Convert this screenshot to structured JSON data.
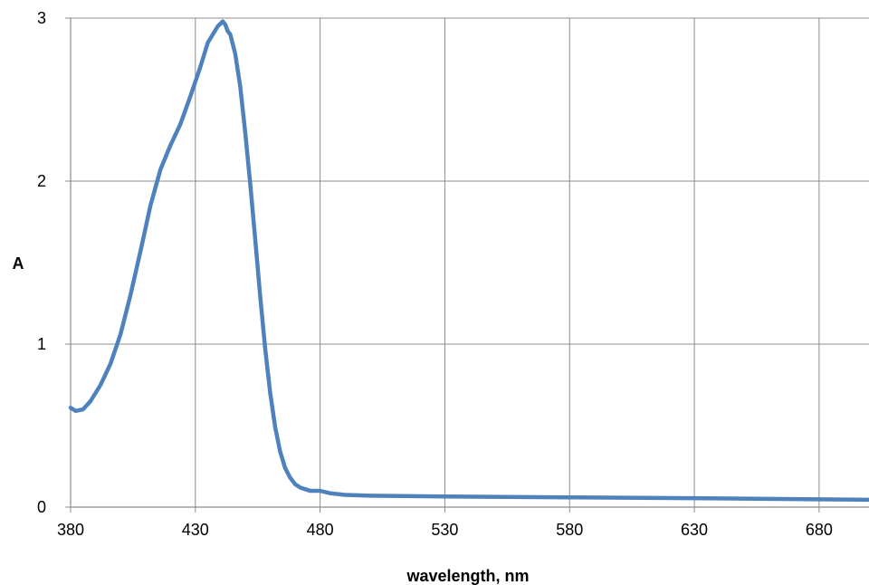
{
  "chart_data": {
    "type": "line",
    "title": "",
    "xlabel": "wavelength, nm",
    "ylabel": "A",
    "xlim": [
      380,
      700
    ],
    "ylim": [
      0,
      3
    ],
    "x_ticks": [
      380,
      430,
      480,
      530,
      580,
      630,
      680
    ],
    "y_ticks": [
      0,
      1,
      2,
      3
    ],
    "grid": true,
    "legend": "none",
    "colors": {
      "line": "#4f81bd",
      "grid": "#8c8c8c",
      "axis": "#8c8c8c"
    },
    "series": [
      {
        "x": [
          380,
          382,
          385,
          388,
          392,
          396,
          400,
          404,
          408,
          412,
          416,
          420,
          424,
          428,
          432,
          435,
          437,
          439,
          441,
          442,
          443,
          444,
          446,
          448,
          450,
          452,
          454,
          456,
          458,
          460,
          462,
          464,
          466,
          468,
          470,
          472,
          474,
          476,
          478,
          480,
          484,
          490,
          500,
          530,
          580,
          630,
          680,
          700
        ],
        "y": [
          0.61,
          0.59,
          0.6,
          0.65,
          0.75,
          0.88,
          1.06,
          1.3,
          1.57,
          1.85,
          2.07,
          2.22,
          2.35,
          2.52,
          2.7,
          2.85,
          2.9,
          2.95,
          2.98,
          2.96,
          2.92,
          2.9,
          2.78,
          2.58,
          2.3,
          1.98,
          1.64,
          1.29,
          0.97,
          0.7,
          0.49,
          0.34,
          0.24,
          0.18,
          0.14,
          0.12,
          0.11,
          0.1,
          0.1,
          0.1,
          0.085,
          0.075,
          0.07,
          0.065,
          0.06,
          0.055,
          0.048,
          0.045
        ]
      }
    ]
  }
}
